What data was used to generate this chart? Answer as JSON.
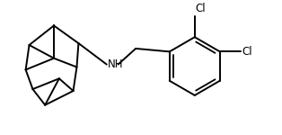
{
  "background_color": "#ffffff",
  "line_color": "#000000",
  "line_width": 1.4,
  "text_color": "#000000",
  "font_size": 8.5,
  "nh_label": "NH",
  "cl1_label": "Cl",
  "cl2_label": "Cl",
  "figsize": [
    3.14,
    1.5
  ],
  "dpi": 100
}
